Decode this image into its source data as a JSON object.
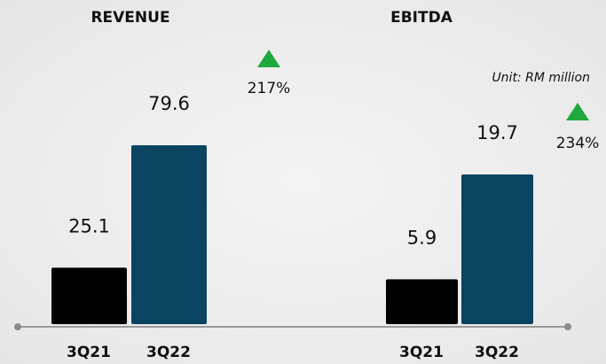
{
  "note": "Unit: RM million",
  "chart_data": [
    {
      "type": "bar",
      "title": "REVENUE",
      "categories": [
        "3Q21",
        "3Q22"
      ],
      "values": [
        25.1,
        79.6
      ],
      "colors": [
        "#000000",
        "#0b4461"
      ],
      "annotation": "217%",
      "annotation_color": "#1fa83c"
    },
    {
      "type": "bar",
      "title": "EBITDA",
      "categories": [
        "3Q21",
        "3Q22"
      ],
      "values": [
        5.9,
        19.7
      ],
      "colors": [
        "#000000",
        "#0b4461"
      ],
      "annotation": "234%",
      "annotation_color": "#1fa83c"
    }
  ]
}
